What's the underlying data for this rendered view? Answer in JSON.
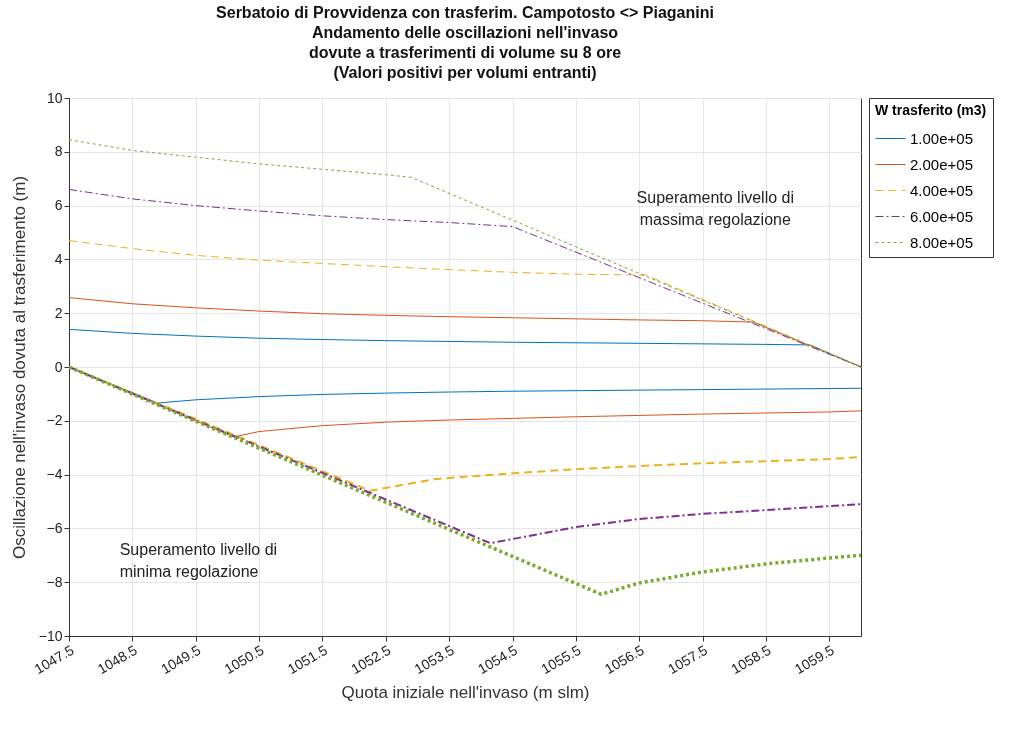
{
  "chart_data": {
    "type": "line",
    "title": "Serbatoio di Provvidenza con trasferim. Campotosto <> Piaganini\nAndamento delle oscillazioni nell'invaso\ndovute a trasferimenti di volume su 8 ore\n(Valori positivi per volumi entranti)",
    "xlabel": "Quota iniziale nell'invaso (m slm)",
    "ylabel": "Oscillazione nell'invaso dovuta al trasferimento (m)",
    "legend_title": "W trasferito (m3)",
    "legend": "right",
    "grid": true,
    "annotations": [
      "Superamento livello di\nmassima regolazione",
      "Superamento livello di\nminima regolazione"
    ],
    "xlim": [
      1047.5,
      1060
    ],
    "xticks": [
      1047.5,
      1048.5,
      1049.5,
      1050.5,
      1051.5,
      1052.5,
      1053.5,
      1054.5,
      1055.5,
      1056.5,
      1057.5,
      1058.5,
      1059.5
    ],
    "ylim": [
      -10,
      10
    ],
    "yticks": [
      -10,
      -8,
      -6,
      -4,
      -2,
      0,
      2,
      4,
      6,
      8,
      10
    ],
    "series": [
      {
        "name": "1.00e+05",
        "color": "#0072bd",
        "line_style": "solid",
        "x": [
          1047.5,
          1048.5,
          1049.5,
          1050.5,
          1051.5,
          1052.5,
          1053.5,
          1054.5,
          1055.5,
          1056.5,
          1057.5,
          1058.5,
          1059.2,
          1060
        ],
        "values": [
          1.4,
          1.25,
          1.15,
          1.07,
          1.02,
          0.98,
          0.95,
          0.92,
          0.9,
          0.88,
          0.86,
          0.84,
          0.82,
          0
        ]
      },
      {
        "color": "#0072bd",
        "line_style": "solid",
        "x": [
          1047.5,
          1048.9,
          1049.5,
          1050.5,
          1051.5,
          1052.5,
          1053.5,
          1054.5,
          1055.5,
          1056.5,
          1057.5,
          1058.5,
          1059.5,
          1060
        ],
        "values": [
          0,
          -1.34,
          -1.22,
          -1.1,
          -1.02,
          -0.97,
          -0.93,
          -0.9,
          -0.88,
          -0.86,
          -0.84,
          -0.82,
          -0.8,
          -0.79
        ]
      },
      {
        "name": "2.00e+05",
        "color": "#d95319",
        "line_style": "solid",
        "x": [
          1047.5,
          1048.5,
          1049.5,
          1050.5,
          1051.5,
          1052.5,
          1053.5,
          1054.5,
          1055.5,
          1056.5,
          1057.5,
          1058.3,
          1060
        ],
        "values": [
          2.58,
          2.35,
          2.2,
          2.08,
          1.98,
          1.92,
          1.87,
          1.83,
          1.79,
          1.75,
          1.72,
          1.67,
          0
        ]
      },
      {
        "color": "#d95319",
        "line_style": "solid",
        "x": [
          1047.5,
          1050.1,
          1050.5,
          1051.5,
          1052.5,
          1053.5,
          1054.5,
          1055.5,
          1056.5,
          1057.5,
          1058.5,
          1059.5,
          1060
        ],
        "values": [
          0,
          -2.6,
          -2.4,
          -2.18,
          -2.05,
          -1.97,
          -1.91,
          -1.85,
          -1.8,
          -1.75,
          -1.71,
          -1.67,
          -1.63
        ]
      },
      {
        "name": "4.00e+05",
        "color": "#edb120",
        "line_style": "dashed",
        "x": [
          1047.5,
          1048.5,
          1049.5,
          1050.5,
          1051.5,
          1052.5,
          1053.5,
          1054.5,
          1055.5,
          1056.6,
          1060
        ],
        "values": [
          4.7,
          4.4,
          4.15,
          3.97,
          3.85,
          3.73,
          3.62,
          3.52,
          3.45,
          3.42,
          0
        ]
      },
      {
        "color": "#edb120",
        "line_style": "dashed",
        "x": [
          1047.5,
          1052.25,
          1053.3,
          1054.5,
          1055.5,
          1056.5,
          1057.5,
          1058.5,
          1059.5,
          1060
        ],
        "values": [
          0,
          -4.6,
          -4.16,
          -3.95,
          -3.8,
          -3.68,
          -3.58,
          -3.5,
          -3.42,
          -3.35
        ]
      },
      {
        "name": "6.00e+05",
        "color": "#7e2f8e",
        "line_style": "dashdot",
        "x": [
          1047.5,
          1048.5,
          1049.5,
          1050.5,
          1051.5,
          1052.5,
          1053.5,
          1054.5,
          1060
        ],
        "values": [
          6.6,
          6.25,
          6.0,
          5.8,
          5.62,
          5.48,
          5.37,
          5.22,
          0
        ]
      },
      {
        "color": "#7e2f8e",
        "line_style": "dashdot",
        "x": [
          1047.5,
          1054.15,
          1055.5,
          1056.5,
          1057.5,
          1058.5,
          1059.5,
          1060
        ],
        "values": [
          0,
          -6.55,
          -5.95,
          -5.65,
          -5.46,
          -5.32,
          -5.17,
          -5.1
        ]
      },
      {
        "name": "8.00e+05",
        "color": "#77ac30",
        "line_style": "dotted",
        "x": [
          1047.5,
          1048.5,
          1049.5,
          1050.5,
          1051.5,
          1052.5,
          1052.9,
          1060
        ],
        "values": [
          8.45,
          8.05,
          7.8,
          7.55,
          7.35,
          7.15,
          7.05,
          0
        ]
      },
      {
        "color": "#77ac30",
        "line_style": "dotted",
        "x": [
          1047.5,
          1055.9,
          1056.5,
          1057.5,
          1058.5,
          1059.5,
          1060
        ],
        "values": [
          0,
          -8.45,
          -8.03,
          -7.62,
          -7.32,
          -7.1,
          -7.0
        ]
      }
    ]
  }
}
